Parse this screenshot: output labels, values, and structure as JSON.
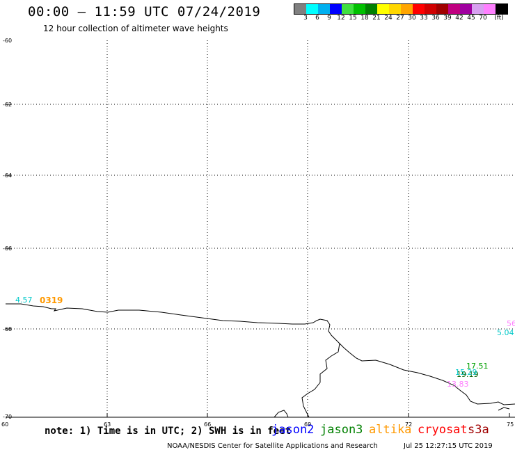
{
  "header": {
    "title": "00:00 – 11:59 UTC 07/24/2019",
    "subtitle": "12 hour collection of altimeter wave heights"
  },
  "colorbar": {
    "swatches": [
      "#808080",
      "#00ffff",
      "#00b0f0",
      "#0000ff",
      "#40e040",
      "#00c000",
      "#008000",
      "#ffff00",
      "#ffd700",
      "#ffa500",
      "#ff0000",
      "#d00000",
      "#a00000",
      "#c00080",
      "#a000a0",
      "#d8a0f0",
      "#ff80ff",
      "#000000"
    ],
    "labels": [
      "3",
      "6",
      "9",
      "12",
      "15",
      "18",
      "21",
      "24",
      "27",
      "30",
      "33",
      "36",
      "39",
      "42",
      "45",
      "70",
      "(ft)"
    ]
  },
  "map": {
    "lat_ticks": [
      "-60",
      "-62",
      "-64",
      "-66",
      "-68",
      "-70"
    ],
    "lon_ticks": [
      "60",
      "63",
      "66",
      "69",
      "72",
      "75"
    ],
    "track_labels": [
      {
        "text": "4.57",
        "color": "#00c8c8"
      },
      {
        "text": "56",
        "color": "#ff80ff"
      },
      {
        "text": "5.04",
        "color": "#00c8c8"
      },
      {
        "text": "17.51",
        "color": "#00a000"
      },
      {
        "text": "19.19",
        "color": "#006000"
      },
      {
        "text": "15.29",
        "color": "#00c8c8"
      },
      {
        "text": "13.83",
        "color": "#ff80ff"
      }
    ],
    "time_labels": [
      {
        "text": "0319",
        "color": "#ff9900"
      }
    ]
  },
  "footer": {
    "note": "note: 1) Time is in UTC; 2) SWH is in feet",
    "missions": [
      {
        "name": "jason2",
        "color": "#0000ff"
      },
      {
        "name": "jason3",
        "color": "#008000"
      },
      {
        "name": "altika",
        "color": "#ff9900"
      },
      {
        "name": "cryosat",
        "color": "#ff0000"
      },
      {
        "name": "s3a",
        "color": "#a00000"
      }
    ],
    "credit": "NOAA/NESDIS Center for Satellite Applications and Research",
    "timestamp": "Jul 25 12:27:15 UTC 2019"
  }
}
